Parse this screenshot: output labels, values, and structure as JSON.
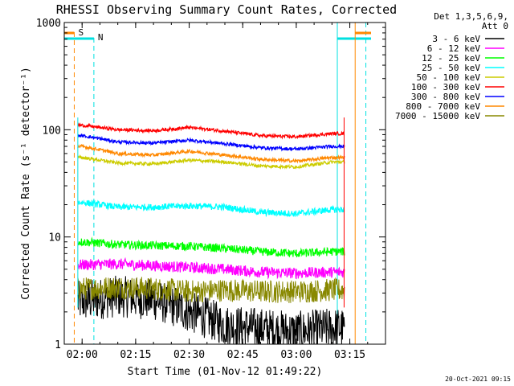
{
  "chart_data": {
    "type": "line",
    "title": "RHESSI Observing Summary Count Rates, Corrected",
    "xlabel": "Start Time (01-Nov-12 01:49:22)",
    "ylabel": "Corrected Count Rate (s⁻¹ detector⁻¹)",
    "y_scale": "log",
    "ylim": [
      1,
      1000
    ],
    "xlim_minutes": [
      -5.0,
      85.0
    ],
    "x_tick_labels": [
      "02:00",
      "02:15",
      "02:30",
      "02:45",
      "03:00",
      "03:15"
    ],
    "x_tick_minutes": [
      0,
      15,
      30,
      45,
      60,
      75
    ],
    "y_tick_labels": [
      "1",
      "10",
      "100",
      "1000"
    ],
    "y_tick_values": [
      1,
      10,
      100,
      1000
    ],
    "legend": {
      "header": [
        "Det 1,3,5,6,9,",
        "Att 0"
      ],
      "placement": "right"
    },
    "flags": [
      {
        "label": "S",
        "color": "#ff8800"
      },
      {
        "label": "N",
        "color": "#00e0e0"
      }
    ],
    "timestamp": "20-Oct-2021 09:15",
    "data_start_minute": -1.2,
    "data_end_minute": 73.4,
    "series": [
      {
        "name": "3 - 6 keV",
        "color": "#000000",
        "x": [
          0,
          10,
          20,
          30,
          40,
          50,
          60,
          70
        ],
        "values": [
          2.5,
          2.8,
          2.6,
          2.0,
          1.5,
          1.4,
          1.3,
          1.4
        ]
      },
      {
        "name": "6 - 12 keV",
        "color": "#ff00ff",
        "x": [
          0,
          10,
          20,
          30,
          40,
          50,
          60,
          70
        ],
        "values": [
          5.5,
          5.6,
          5.4,
          5.2,
          5.0,
          4.7,
          4.6,
          4.7
        ]
      },
      {
        "name": "12 - 25 keV",
        "color": "#00ff00",
        "x": [
          0,
          10,
          20,
          30,
          40,
          50,
          60,
          70
        ],
        "values": [
          9.0,
          8.5,
          8.3,
          8.2,
          7.8,
          7.3,
          7.0,
          7.3
        ]
      },
      {
        "name": "25 - 50 keV",
        "color": "#00ffff",
        "x": [
          0,
          10,
          20,
          30,
          40,
          50,
          60,
          70
        ],
        "values": [
          21,
          19,
          19,
          19.5,
          19,
          17,
          16.5,
          18
        ]
      },
      {
        "name": "50 - 100 keV",
        "color": "#cccc00",
        "x": [
          0,
          10,
          20,
          30,
          40,
          50,
          60,
          70
        ],
        "values": [
          55,
          49,
          48,
          52,
          50,
          46,
          45,
          50
        ]
      },
      {
        "name": "100 - 300 keV",
        "color": "#ff0000",
        "x": [
          0,
          10,
          20,
          30,
          40,
          50,
          60,
          70
        ],
        "values": [
          110,
          100,
          98,
          105,
          97,
          88,
          86,
          92
        ]
      },
      {
        "name": "300 - 800 keV",
        "color": "#0000ff",
        "x": [
          0,
          10,
          20,
          30,
          40,
          50,
          60,
          70
        ],
        "values": [
          88,
          77,
          75,
          80,
          74,
          68,
          66,
          70
        ]
      },
      {
        "name": "800 - 7000 keV",
        "color": "#ff8800",
        "x": [
          0,
          10,
          20,
          30,
          40,
          50,
          60,
          70
        ],
        "values": [
          70,
          60,
          58,
          63,
          58,
          53,
          51,
          55
        ]
      },
      {
        "name": "7000 - 15000 keV",
        "color": "#888800",
        "x": [
          0,
          10,
          20,
          30,
          40,
          50,
          60,
          70
        ],
        "values": [
          3.3,
          3.4,
          3.3,
          3.1,
          3.2,
          3.1,
          3.1,
          3.2
        ]
      }
    ]
  }
}
